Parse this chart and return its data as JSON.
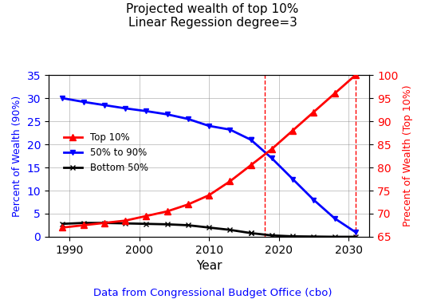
{
  "title": "Projected wealth of top 10%\nLinear Regession degree=3",
  "xlabel": "Year",
  "xlabel2": "Data from Congressional Budget Office (cbo)",
  "ylabel_left": "Percent of Wealth (90%)",
  "ylabel_right": "Precent of Wealth (Top 10%)",
  "years_actual": [
    1989,
    1992,
    1995,
    1998,
    2001,
    2004,
    2007,
    2010,
    2013,
    2016
  ],
  "mid_actual": [
    30.0,
    29.2,
    28.5,
    27.8,
    27.2,
    26.5,
    25.5,
    24.0,
    23.2,
    21.0
  ],
  "bot50_actual": [
    2.8,
    3.0,
    3.0,
    2.9,
    2.8,
    2.7,
    2.5,
    2.0,
    1.5,
    0.8
  ],
  "years_proj": [
    2016,
    2019,
    2022,
    2025,
    2028,
    2031
  ],
  "mid_proj": [
    21.0,
    17.0,
    12.5,
    8.0,
    4.0,
    1.0
  ],
  "bot50_proj": [
    0.8,
    0.3,
    0.1,
    0.05,
    0.0,
    0.0
  ],
  "top10_right_years": [
    1989,
    1992,
    1995,
    1998,
    2001,
    2004,
    2007,
    2010,
    2013,
    2016,
    2019,
    2022,
    2025,
    2028,
    2031
  ],
  "top10_right": [
    67.0,
    67.5,
    68.0,
    68.5,
    69.5,
    70.5,
    72.0,
    74.0,
    77.0,
    80.5,
    84.0,
    88.0,
    92.0,
    96.0,
    100.0
  ],
  "vline1": 2018,
  "vline2": 2031,
  "ylim_left": [
    0,
    35
  ],
  "ylim_right": [
    65,
    100
  ],
  "xlim": [
    1987,
    2033
  ],
  "xticks": [
    1990,
    2000,
    2010,
    2020,
    2030
  ],
  "color_top10": "red",
  "color_mid": "blue",
  "color_bot50": "black",
  "legend_labels": [
    "Top 10%",
    "50% to 90%",
    "Bottom 50%"
  ],
  "figsize": [
    5.33,
    3.75
  ],
  "dpi": 100
}
